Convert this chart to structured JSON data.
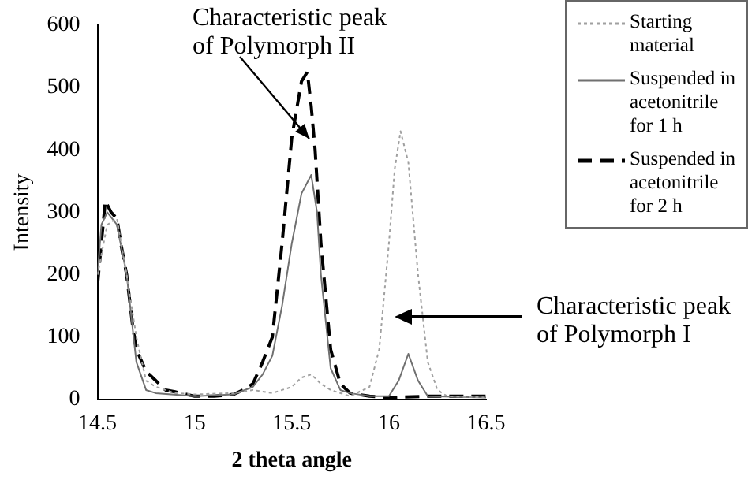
{
  "chart_data": {
    "type": "line",
    "xlabel": "2 theta angle",
    "ylabel": "Intensity",
    "xlim": [
      14.5,
      16.5
    ],
    "xticks": [
      14.5,
      15,
      15.5,
      16,
      16.5
    ],
    "ylim": [
      0,
      600
    ],
    "yticks": [
      0,
      100,
      200,
      300,
      400,
      500,
      600
    ],
    "grid": false,
    "legend": "top right",
    "marker": "none",
    "series": [
      {
        "name": "Starting material",
        "color": "#a0a0a0",
        "line_style": "dotted",
        "x": [
          14.5,
          14.55,
          14.6,
          14.65,
          14.7,
          14.75,
          14.8,
          14.9,
          15,
          15.2,
          15.3,
          15.4,
          15.5,
          15.55,
          15.6,
          15.65,
          15.7,
          15.8,
          15.9,
          15.95,
          16,
          16.03,
          16.06,
          16.1,
          16.15,
          16.2,
          16.25,
          16.3,
          16.5
        ],
        "values": [
          200,
          280,
          290,
          200,
          100,
          30,
          20,
          10,
          8,
          10,
          15,
          10,
          20,
          35,
          40,
          25,
          15,
          5,
          20,
          80,
          250,
          370,
          430,
          380,
          200,
          60,
          15,
          5,
          3
        ]
      },
      {
        "name": "Suspended in acetonitrile for 1 h",
        "color": "#707070",
        "line_style": "solid",
        "x": [
          14.5,
          14.52,
          14.55,
          14.6,
          14.65,
          14.7,
          14.75,
          14.8,
          15,
          15.2,
          15.3,
          15.35,
          15.4,
          15.45,
          15.5,
          15.55,
          15.6,
          15.63,
          15.65,
          15.7,
          15.75,
          15.8,
          15.9,
          16,
          16.05,
          16.1,
          16.15,
          16.2,
          16.5
        ],
        "values": [
          200,
          280,
          300,
          280,
          200,
          60,
          15,
          10,
          5,
          8,
          20,
          40,
          70,
          150,
          250,
          330,
          360,
          300,
          200,
          50,
          15,
          10,
          5,
          5,
          30,
          73,
          30,
          5,
          3
        ]
      },
      {
        "name": "Suspended in acetonitrile for 2 h",
        "color": "#000000",
        "line_style": "dashed",
        "x": [
          14.5,
          14.54,
          14.57,
          14.6,
          14.62,
          14.65,
          14.68,
          14.7,
          14.75,
          14.8,
          14.85,
          14.9,
          15,
          15.1,
          15.2,
          15.25,
          15.3,
          15.35,
          15.4,
          15.45,
          15.5,
          15.55,
          15.58,
          15.6,
          15.62,
          15.65,
          15.7,
          15.75,
          15.8,
          15.9,
          16,
          16.2,
          16.5
        ],
        "values": [
          184,
          318,
          300,
          290,
          250,
          200,
          120,
          80,
          45,
          30,
          15,
          12,
          5,
          5,
          8,
          15,
          25,
          60,
          100,
          250,
          420,
          510,
          525,
          470,
          400,
          250,
          80,
          25,
          10,
          5,
          3,
          5,
          5
        ]
      }
    ],
    "annotations": [
      {
        "text": "Characteristic peak of Polymorph II",
        "x": 15.59,
        "y": 418
      },
      "Characteristic peak of Polymorph I"
    ]
  }
}
